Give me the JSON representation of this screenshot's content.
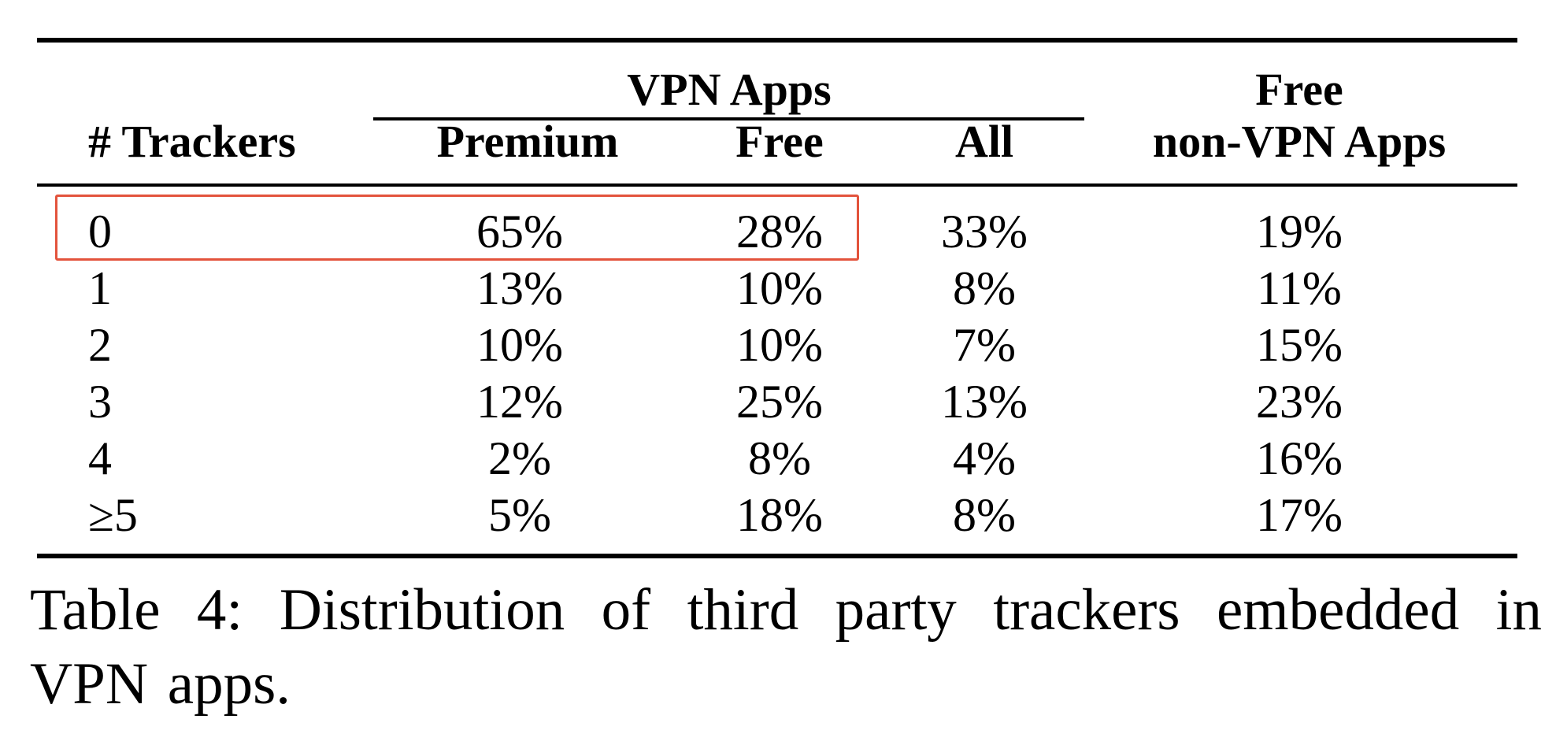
{
  "table": {
    "group_header": "VPN Apps",
    "headers": {
      "trackers": "# Trackers",
      "premium": "Premium",
      "free": "Free",
      "all": "All",
      "nonvpn_line1": "Free",
      "nonvpn_line2": "non-VPN Apps"
    },
    "rows": [
      {
        "trackers": "0",
        "premium": "65%",
        "free": "28%",
        "all": "33%",
        "nonvpn": "19%"
      },
      {
        "trackers": "1",
        "premium": "13%",
        "free": "10%",
        "all": "8%",
        "nonvpn": "11%"
      },
      {
        "trackers": "2",
        "premium": "10%",
        "free": "10%",
        "all": "7%",
        "nonvpn": "15%"
      },
      {
        "trackers": "3",
        "premium": "12%",
        "free": "25%",
        "all": "13%",
        "nonvpn": "23%"
      },
      {
        "trackers": "4",
        "premium": "2%",
        "free": "8%",
        "all": "4%",
        "nonvpn": "16%"
      },
      {
        "trackers": "≥5",
        "premium": "5%",
        "free": "18%",
        "all": "8%",
        "nonvpn": "17%"
      }
    ],
    "highlight_color": "#e3533c"
  },
  "caption": {
    "line1": "Table 4: Distribution of third party trackers embedded in",
    "line2": "VPN apps."
  }
}
